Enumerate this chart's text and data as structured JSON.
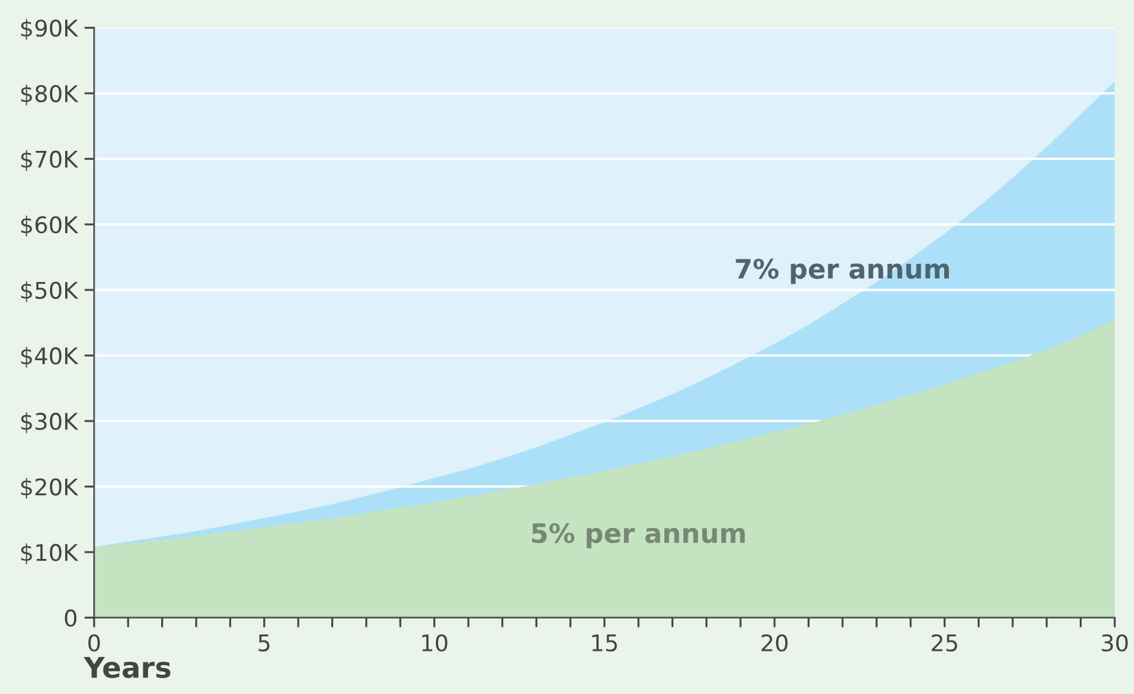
{
  "chart_data": {
    "type": "area",
    "xlabel": "Years",
    "x": [
      0,
      1,
      2,
      3,
      4,
      5,
      6,
      7,
      8,
      9,
      10,
      11,
      12,
      13,
      14,
      15,
      16,
      17,
      18,
      19,
      20,
      21,
      22,
      23,
      24,
      25,
      26,
      27,
      28,
      29,
      30
    ],
    "series": [
      {
        "name": "7% per annum",
        "color": "#ace0f8",
        "values": [
          10.8,
          11.6,
          12.4,
          13.2,
          14.2,
          15.2,
          16.2,
          17.3,
          18.6,
          19.9,
          21.3,
          22.7,
          24.3,
          26.0,
          27.9,
          29.8,
          31.9,
          34.1,
          36.5,
          39.1,
          41.8,
          44.7,
          47.9,
          51.2,
          54.8,
          58.6,
          62.7,
          67.1,
          71.8,
          76.8,
          81.8
        ]
      },
      {
        "name": "5% per annum",
        "color": "#c4e3c1",
        "values": [
          10.8,
          11.3,
          11.9,
          12.5,
          13.1,
          13.8,
          14.5,
          15.2,
          16.0,
          16.8,
          17.6,
          18.5,
          19.4,
          20.4,
          21.4,
          22.4,
          23.5,
          24.6,
          25.8,
          27.0,
          28.3,
          29.6,
          31.0,
          32.5,
          34.0,
          35.6,
          37.3,
          39.0,
          40.9,
          43.0,
          45.5
        ]
      }
    ],
    "xlim": [
      0,
      30
    ],
    "xticks": [
      0,
      {
        "value": 1,
        "label": null
      },
      {
        "value": 2,
        "label": null
      },
      {
        "value": 3,
        "label": null
      },
      {
        "value": 4,
        "label": null
      },
      5,
      {
        "value": 6,
        "label": null
      },
      {
        "value": 7,
        "label": null
      },
      {
        "value": 8,
        "label": null
      },
      {
        "value": 9,
        "label": null
      },
      10,
      {
        "value": 11,
        "label": null
      },
      {
        "value": 12,
        "label": null
      },
      {
        "value": 13,
        "label": null
      },
      {
        "value": 14,
        "label": null
      },
      15,
      {
        "value": 16,
        "label": null
      },
      {
        "value": 17,
        "label": null
      },
      {
        "value": 18,
        "label": null
      },
      {
        "value": 19,
        "label": null
      },
      20,
      {
        "value": 21,
        "label": null
      },
      {
        "value": 22,
        "label": null
      },
      {
        "value": 23,
        "label": null
      },
      {
        "value": 24,
        "label": null
      },
      25,
      {
        "value": 26,
        "label": null
      },
      {
        "value": 27,
        "label": null
      },
      {
        "value": 28,
        "label": null
      },
      {
        "value": 29,
        "label": null
      },
      30
    ],
    "ylim": [
      0,
      90
    ],
    "yticks": [
      0,
      {
        "value": 10,
        "label": "$10K"
      },
      {
        "value": 20,
        "label": "$20K"
      },
      {
        "value": 30,
        "label": "$30K"
      },
      {
        "value": 40,
        "label": "$40K"
      },
      {
        "value": 50,
        "label": "$50K"
      },
      {
        "value": 60,
        "label": "$60K"
      },
      {
        "value": 70,
        "label": "$70K"
      },
      {
        "value": 80,
        "label": "$80K"
      },
      {
        "value": 90,
        "label": "$90K"
      }
    ],
    "grid": "y",
    "legend": false
  }
}
